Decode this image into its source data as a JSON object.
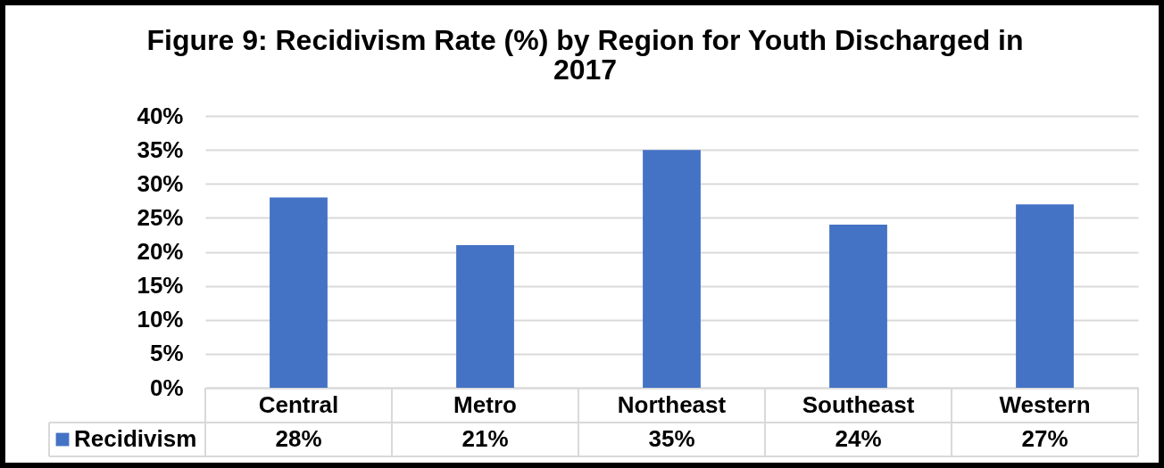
{
  "chart_data": {
    "type": "bar",
    "title": "Figure 9: Recidivism Rate (%) by Region for Youth Discharged in 2017",
    "categories": [
      "Central",
      "Metro",
      "Northeast",
      "Southeast",
      "Western"
    ],
    "series": [
      {
        "name": "Recidivism",
        "color": "#4472c4",
        "values": [
          28,
          21,
          35,
          24,
          27
        ],
        "value_labels": [
          "28%",
          "21%",
          "35%",
          "24%",
          "27%"
        ]
      }
    ],
    "ylim": [
      0,
      40
    ],
    "yticks": [
      {
        "value": 0,
        "label": "0%"
      },
      {
        "value": 5,
        "label": "5%"
      },
      {
        "value": 10,
        "label": "10%"
      },
      {
        "value": 15,
        "label": "15%"
      },
      {
        "value": 20,
        "label": "20%"
      },
      {
        "value": 25,
        "label": "25%"
      },
      {
        "value": 30,
        "label": "30%"
      },
      {
        "value": 35,
        "label": "35%"
      },
      {
        "value": 40,
        "label": "40%"
      }
    ],
    "grid": "y",
    "legend": "bottom left"
  }
}
